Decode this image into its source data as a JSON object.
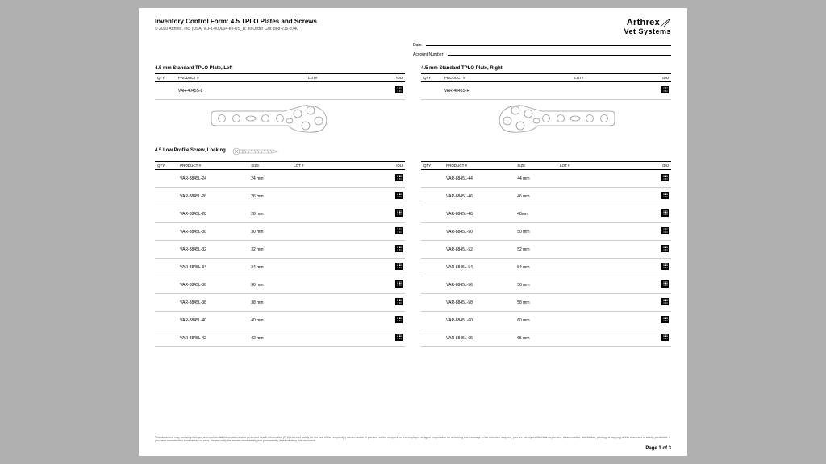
{
  "header": {
    "title": "Inventory Control Form: 4.5 TPLO Plates and Screws",
    "copyright": "© 2020 Arthrex, Inc. (USA) vLF1-000004-en-US_B; To Order Call: 888-215-3740"
  },
  "logo": {
    "main": "Arthrex",
    "sub": "Vet Systems"
  },
  "meta": {
    "date_label": "Date:",
    "account_label": "Account Number:"
  },
  "plate_left": {
    "title": "4.5 mm Standard TPLO Plate, Left",
    "headers": {
      "qty": "QTY",
      "product": "PRODUCT #",
      "lot": "LOT#",
      "idu": "IDU"
    },
    "product": "VAR-4045S-L"
  },
  "plate_right": {
    "title": "4.5 mm Standard TPLO Plate, Right",
    "headers": {
      "qty": "QTY",
      "product": "PRODUCT #",
      "lot": "LOT#",
      "idu": "IDU"
    },
    "product": "VAR-4045S-R"
  },
  "screws": {
    "title": "4.5 Low Profile Screw, Locking",
    "headers": {
      "qty": "QTY",
      "product": "PRODUCT #",
      "size": "SIZE",
      "lot": "LOT #",
      "idu": "IDU"
    },
    "left_rows": [
      {
        "product": "VAR-8845L-24",
        "size": "24 mm"
      },
      {
        "product": "VAR-8845L-26",
        "size": "26 mm"
      },
      {
        "product": "VAR-8845L-28",
        "size": "28 mm"
      },
      {
        "product": "VAR-8845L-30",
        "size": "30 mm"
      },
      {
        "product": "VAR-8845L-32",
        "size": "32 mm"
      },
      {
        "product": "VAR-8845L-34",
        "size": "34 mm"
      },
      {
        "product": "VAR-8845L-36",
        "size": "36 mm"
      },
      {
        "product": "VAR-8845L-38",
        "size": "38 mm"
      },
      {
        "product": "VAR-8845L-40",
        "size": "40 mm"
      },
      {
        "product": "VAR-8845L-42",
        "size": "42 mm"
      }
    ],
    "right_rows": [
      {
        "product": "VAR-8845L-44",
        "size": "44 mm"
      },
      {
        "product": "VAR-8845L-46",
        "size": "46 mm"
      },
      {
        "product": "VAR-8845L-48",
        "size": "48mm"
      },
      {
        "product": "VAR-8845L-50",
        "size": "50 mm"
      },
      {
        "product": "VAR-8845L-52",
        "size": "52 mm"
      },
      {
        "product": "VAR-8845L-54",
        "size": "54 mm"
      },
      {
        "product": "VAR-8845L-56",
        "size": "56 mm"
      },
      {
        "product": "VAR-8845L-58",
        "size": "58 mm"
      },
      {
        "product": "VAR-8845L-60",
        "size": "60 mm"
      },
      {
        "product": "VAR-8845L-65",
        "size": "65 mm"
      }
    ]
  },
  "footer": {
    "disclaimer": "This document may contain privileged and confidential information and/or protected health information (PHI) intended solely for the use of the recipient(s) named above. If you are not the recipient, or the employee or agent responsible for delivering this message to the intended recipient, you are hereby notified that any review, dissemination, distribution, printing, or copying of this document is strictly prohibited. If you have received this transmission in error, please notify the sender immediately and permanently delete/destroy this document.",
    "page": "Page 1 of 3"
  },
  "colors": {
    "bg": "#b0b0b0",
    "text": "#000000",
    "rule": "#cccccc",
    "illus_stroke": "#999999"
  }
}
